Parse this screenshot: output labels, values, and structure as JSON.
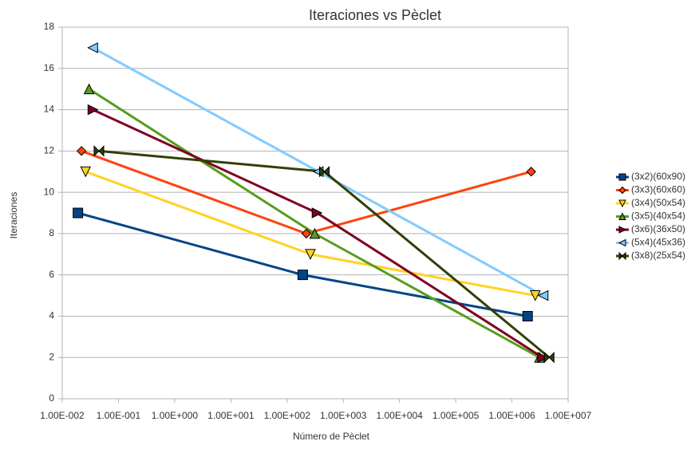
{
  "chart_data": {
    "type": "scatter",
    "title": "Iteraciones vs Pèclet",
    "x_label": "Número de Pèclet",
    "y_label": "Iteraciones",
    "xscale": "log",
    "xlim": [
      0.01,
      10000000
    ],
    "xticks": [
      {
        "value": 0.01,
        "label": "1.00E-002"
      },
      {
        "value": 0.1,
        "label": "1.00E-001"
      },
      {
        "value": 1,
        "label": "1.00E+000"
      },
      {
        "value": 10,
        "label": "1.00E+001"
      },
      {
        "value": 100,
        "label": "1.00E+002"
      },
      {
        "value": 1000,
        "label": "1.00E+003"
      },
      {
        "value": 10000,
        "label": "1.00E+004"
      },
      {
        "value": 100000,
        "label": "1.00E+005"
      },
      {
        "value": 1000000,
        "label": "1.00E+006"
      },
      {
        "value": 10000000,
        "label": "1.00E+007"
      }
    ],
    "ylim": [
      0,
      18
    ],
    "yticks": [
      0,
      2,
      4,
      6,
      8,
      10,
      12,
      14,
      16,
      18
    ],
    "grid": true,
    "legend": "right",
    "series": [
      {
        "name": "(3x2)(60x90)",
        "color": "#004586",
        "marker": "square",
        "x": [
          0.019,
          190,
          1900000
        ],
        "values": [
          9,
          6,
          4
        ]
      },
      {
        "name": "(3x3)(60x60)",
        "color": "#ff420e",
        "marker": "diamond",
        "x": [
          0.022,
          220,
          2200000
        ],
        "values": [
          12,
          8,
          11
        ]
      },
      {
        "name": "(3x4)(50x54)",
        "color": "#ffd320",
        "marker": "triangle-down",
        "x": [
          0.026,
          260,
          2600000
        ],
        "values": [
          11,
          7,
          5
        ]
      },
      {
        "name": "(3x5)(40x54)",
        "color": "#579d1c",
        "marker": "triangle-up",
        "x": [
          0.03,
          310,
          3100000
        ],
        "values": [
          15,
          8,
          2
        ]
      },
      {
        "name": "(3x6)(36x50)",
        "color": "#7e0021",
        "marker": "triangle-right",
        "x": [
          0.035,
          340,
          3500000
        ],
        "values": [
          14,
          9,
          2
        ]
      },
      {
        "name": "(5x4)(45x36)",
        "color": "#83caff",
        "marker": "triangle-left",
        "x": [
          0.035,
          360,
          3600000
        ],
        "values": [
          17,
          11,
          5
        ]
      },
      {
        "name": "(3x8)(25x54)",
        "color": "#314004",
        "marker": "bowtie",
        "x": [
          0.045,
          460,
          4600000
        ],
        "values": [
          12,
          11,
          2
        ]
      }
    ]
  }
}
